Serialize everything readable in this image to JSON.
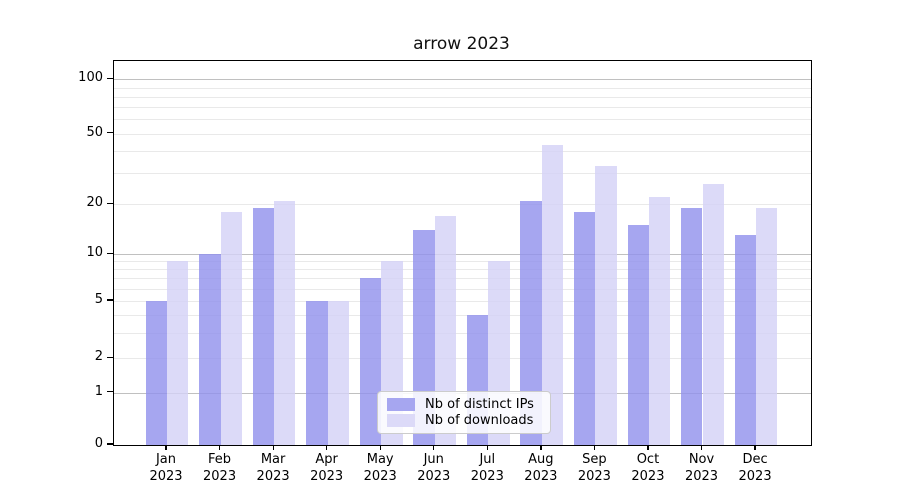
{
  "title": "arrow 2023",
  "chart_data": {
    "type": "bar",
    "categories": [
      "Jan",
      "Feb",
      "Mar",
      "Apr",
      "May",
      "Jun",
      "Jul",
      "Aug",
      "Sep",
      "Oct",
      "Nov",
      "Dec"
    ],
    "year_label": "2023",
    "series": [
      {
        "name": "Nb of distinct IPs",
        "color": "#a6a6f0",
        "values": [
          5,
          10,
          19,
          5,
          7,
          14,
          4,
          21,
          18,
          15,
          19,
          13
        ]
      },
      {
        "name": "Nb of downloads",
        "color": "#dcdaf8",
        "values": [
          9,
          18,
          21,
          5,
          9,
          17,
          9,
          43,
          33,
          22,
          26,
          19
        ]
      }
    ],
    "yscale": "symlog",
    "yticks": [
      0,
      1,
      2,
      5,
      10,
      20,
      50,
      100
    ],
    "ylim": [
      0,
      120
    ],
    "xlabel": "",
    "ylabel": "",
    "grid": true,
    "legend_position": "lower center"
  }
}
